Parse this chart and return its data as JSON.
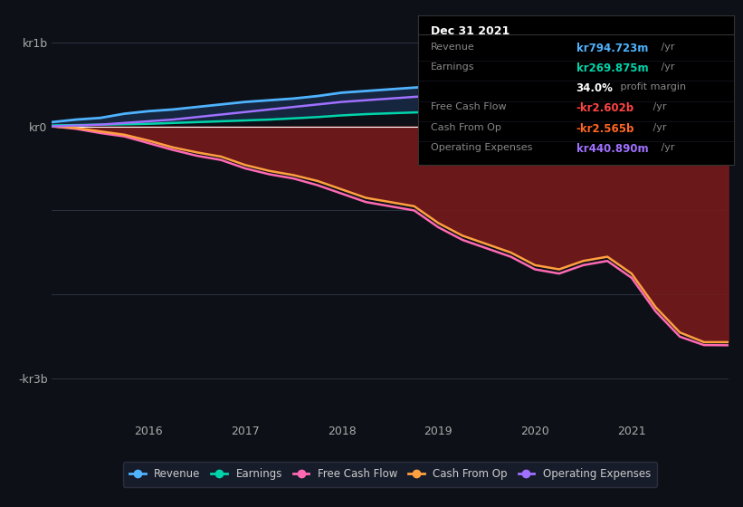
{
  "background_color": "#0d1117",
  "plot_bg_color": "#0d1117",
  "grid_color": "#2a3040",
  "zero_line_color": "#ffffff",
  "title": "Dec 31 2021",
  "tooltip": {
    "Revenue": "kr794.723m /yr",
    "Earnings": "kr269.875m /yr",
    "profit_margin": "34.0% profit margin",
    "Free Cash Flow": "-kr2.602b /yr",
    "Cash From Op": "-kr2.565b /yr",
    "Operating Expenses": "kr440.890m /yr"
  },
  "ylim": [
    -3500000000,
    1200000000
  ],
  "yticks": [
    -3000000000,
    0,
    1000000000
  ],
  "ytick_labels": [
    "-kr3b",
    "kr0",
    "kr1b"
  ],
  "years": [
    2015.0,
    2015.25,
    2015.5,
    2015.75,
    2016.0,
    2016.25,
    2016.5,
    2016.75,
    2017.0,
    2017.25,
    2017.5,
    2017.75,
    2018.0,
    2018.25,
    2018.5,
    2018.75,
    2019.0,
    2019.25,
    2019.5,
    2019.75,
    2020.0,
    2020.25,
    2020.5,
    2020.75,
    2021.0,
    2021.25,
    2021.5,
    2021.75,
    2022.0
  ],
  "revenue": [
    50000000,
    80000000,
    100000000,
    150000000,
    180000000,
    200000000,
    230000000,
    260000000,
    290000000,
    310000000,
    330000000,
    360000000,
    400000000,
    420000000,
    440000000,
    460000000,
    480000000,
    500000000,
    520000000,
    540000000,
    570000000,
    590000000,
    620000000,
    660000000,
    700000000,
    730000000,
    760000000,
    785000000,
    795000000
  ],
  "earnings": [
    10000000,
    15000000,
    20000000,
    25000000,
    30000000,
    40000000,
    50000000,
    60000000,
    70000000,
    80000000,
    95000000,
    110000000,
    130000000,
    145000000,
    155000000,
    165000000,
    175000000,
    185000000,
    195000000,
    205000000,
    215000000,
    225000000,
    235000000,
    248000000,
    258000000,
    263000000,
    267000000,
    270000000,
    270000000
  ],
  "free_cash_flow": [
    0,
    -30000000,
    -80000000,
    -120000000,
    -200000000,
    -280000000,
    -350000000,
    -400000000,
    -500000000,
    -570000000,
    -620000000,
    -700000000,
    -800000000,
    -900000000,
    -950000000,
    -1000000000,
    -1200000000,
    -1350000000,
    -1450000000,
    -1550000000,
    -1700000000,
    -1750000000,
    -1650000000,
    -1600000000,
    -1800000000,
    -2200000000,
    -2500000000,
    -2600000000,
    -2602000000
  ],
  "cash_from_op": [
    0,
    -20000000,
    -60000000,
    -100000000,
    -170000000,
    -250000000,
    -310000000,
    -360000000,
    -460000000,
    -530000000,
    -580000000,
    -650000000,
    -750000000,
    -850000000,
    -900000000,
    -950000000,
    -1150000000,
    -1300000000,
    -1400000000,
    -1500000000,
    -1650000000,
    -1700000000,
    -1600000000,
    -1550000000,
    -1750000000,
    -2150000000,
    -2450000000,
    -2565000000,
    -2565000000
  ],
  "operating_expenses": [
    0,
    10000000,
    20000000,
    40000000,
    60000000,
    80000000,
    110000000,
    140000000,
    170000000,
    200000000,
    230000000,
    260000000,
    290000000,
    310000000,
    330000000,
    350000000,
    365000000,
    375000000,
    385000000,
    395000000,
    405000000,
    415000000,
    425000000,
    432000000,
    437000000,
    440000000,
    441000000,
    441000000,
    441000000
  ],
  "revenue_color": "#4fb3ff",
  "earnings_color": "#00d4aa",
  "fcf_color": "#ff69b4",
  "cashop_color": "#ffa040",
  "opex_color": "#a070ff",
  "fill_color": "#7b1a1a",
  "fill_alpha": 0.85,
  "revenue_fill_color": "#1a3050",
  "revenue_fill_alpha": 0.7,
  "legend_items": [
    {
      "label": "Revenue",
      "color": "#4fb3ff"
    },
    {
      "label": "Earnings",
      "color": "#00d4aa"
    },
    {
      "label": "Free Cash Flow",
      "color": "#ff69b4"
    },
    {
      "label": "Cash From Op",
      "color": "#ffa040"
    },
    {
      "label": "Operating Expenses",
      "color": "#a070ff"
    }
  ],
  "xticks": [
    2016,
    2017,
    2018,
    2019,
    2020,
    2021
  ],
  "extra_hlines": [
    -1000000000,
    -2000000000
  ],
  "tooltip_rows": [
    {
      "label": "Revenue",
      "value": "kr794.723m",
      "suffix": " /yr",
      "color": "#4fb3ff"
    },
    {
      "label": "Earnings",
      "value": "kr269.875m",
      "suffix": " /yr",
      "color": "#00d4aa"
    },
    {
      "label": "",
      "value": "34.0%",
      "suffix": " profit margin",
      "color": "#ffffff"
    },
    {
      "label": "Free Cash Flow",
      "value": "-kr2.602b",
      "suffix": " /yr",
      "color": "#ff4444"
    },
    {
      "label": "Cash From Op",
      "value": "-kr2.565b",
      "suffix": " /yr",
      "color": "#ff6622"
    },
    {
      "label": "Operating Expenses",
      "value": "kr440.890m",
      "suffix": " /yr",
      "color": "#a070ff"
    }
  ]
}
